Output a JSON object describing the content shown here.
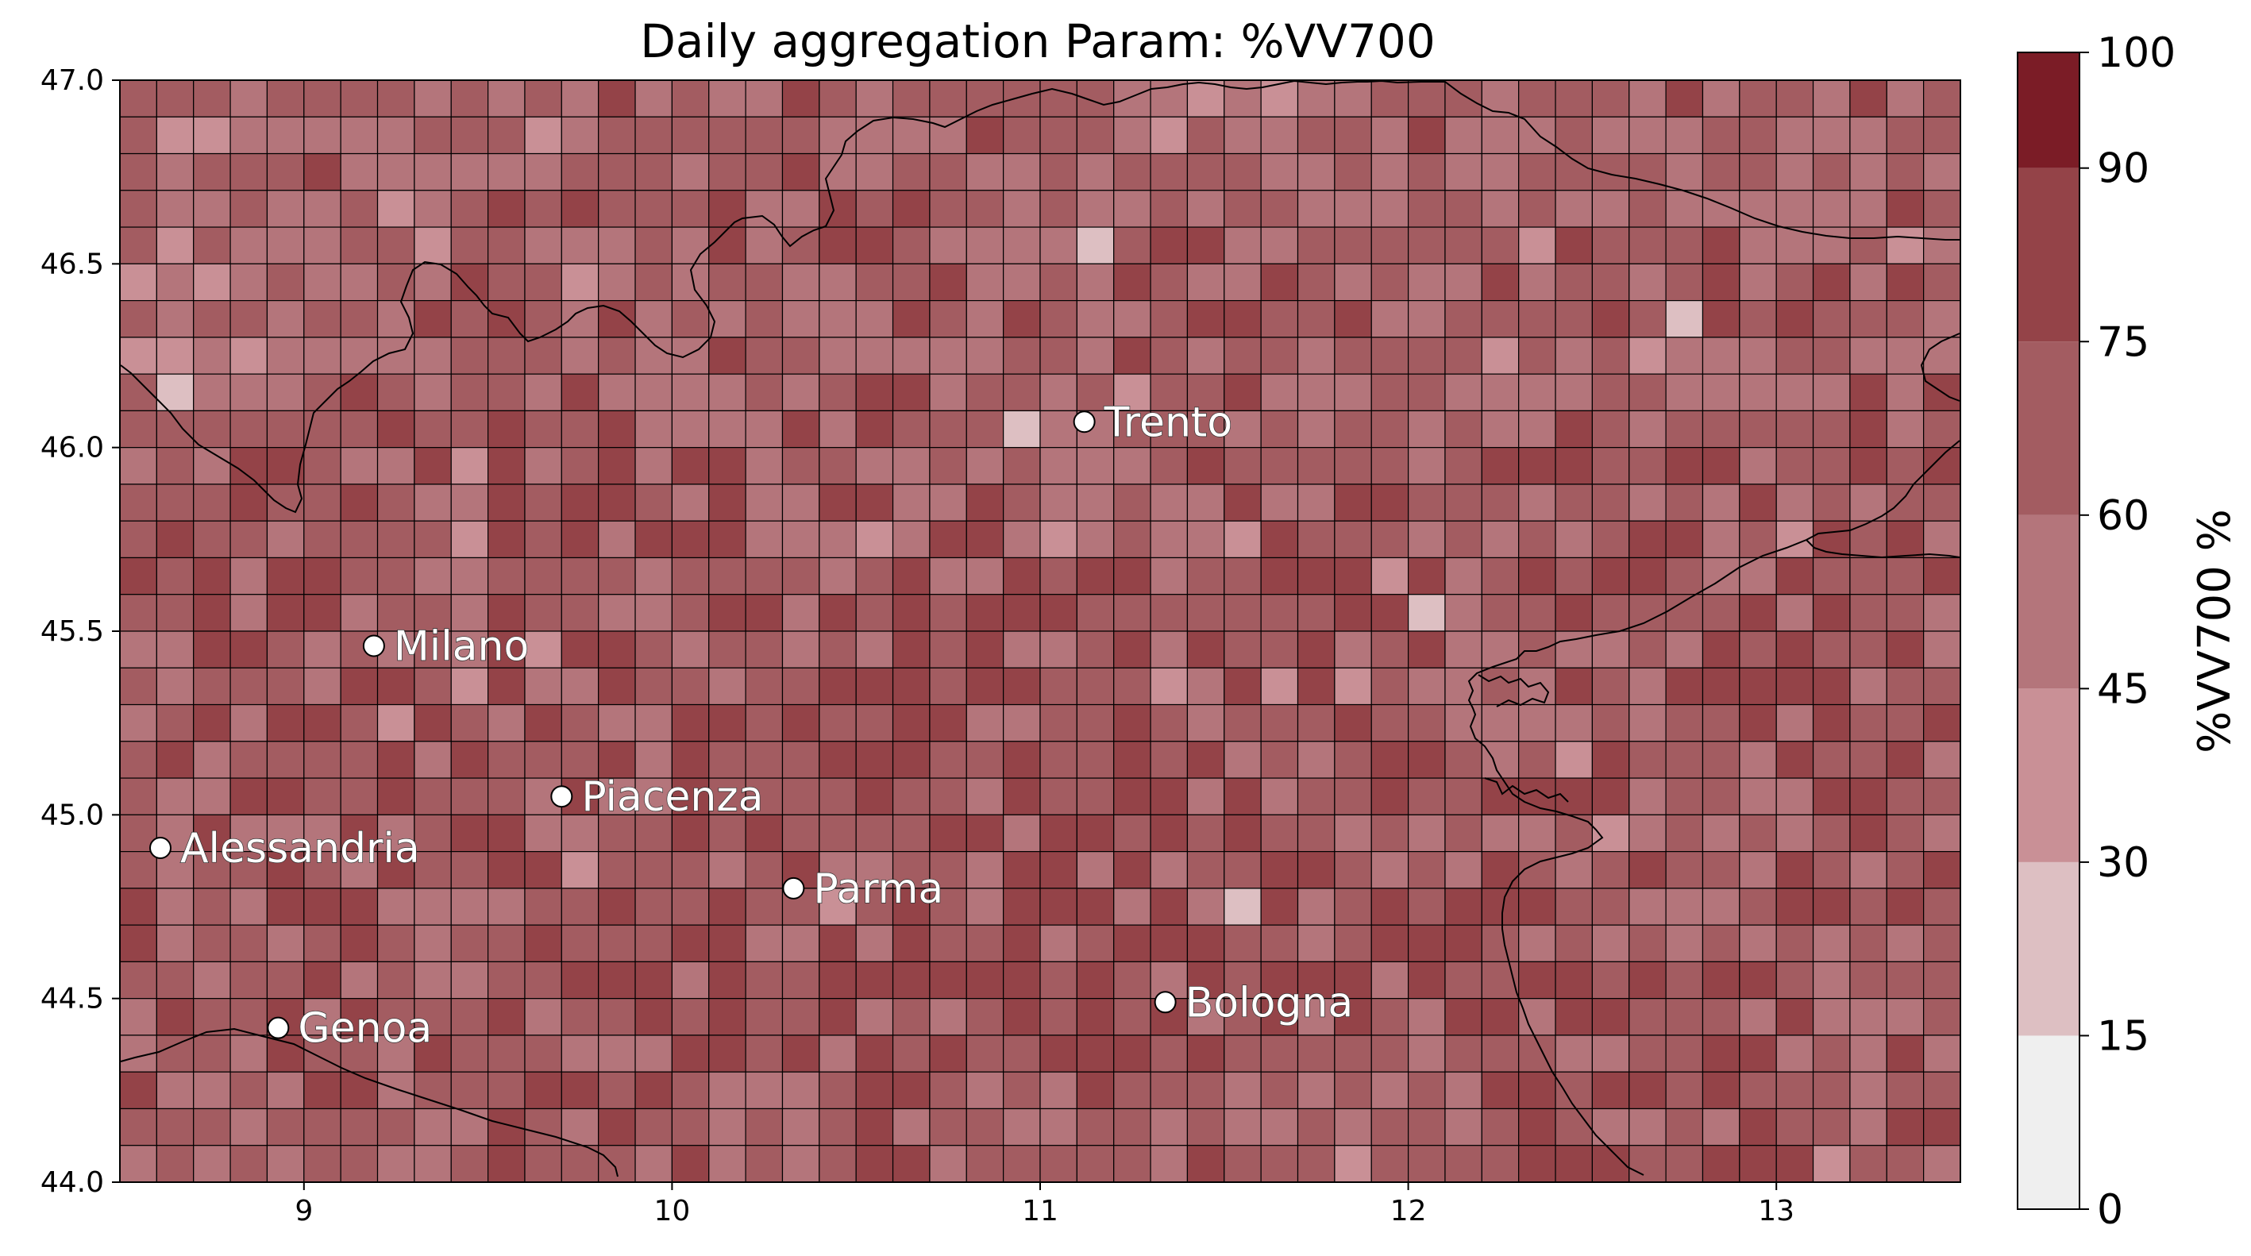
{
  "title": "Daily aggregation Param: %VV700",
  "map": {
    "lon_range": [
      8.5,
      13.5
    ],
    "lat_range": [
      44.0,
      47.0
    ],
    "cell_size_deg": 0.1,
    "x_ticks": [
      "9",
      "10",
      "11",
      "12",
      "13"
    ],
    "y_ticks": [
      "44.0",
      "44.5",
      "45.0",
      "45.5",
      "46.0",
      "46.5",
      "47.0"
    ],
    "gridlines": true,
    "cities": [
      {
        "name": "Trento",
        "lon": 11.12,
        "lat": 46.07
      },
      {
        "name": "Milano",
        "lon": 9.19,
        "lat": 45.46
      },
      {
        "name": "Piacenza",
        "lon": 9.7,
        "lat": 45.05
      },
      {
        "name": "Alessandria",
        "lon": 8.61,
        "lat": 44.91
      },
      {
        "name": "Parma",
        "lon": 10.33,
        "lat": 44.8
      },
      {
        "name": "Bologna",
        "lon": 11.34,
        "lat": 44.49
      },
      {
        "name": "Genoa",
        "lon": 8.93,
        "lat": 44.42
      }
    ]
  },
  "colorbar": {
    "label": "%VV700 %",
    "ticks": [
      "0",
      "15",
      "30",
      "45",
      "60",
      "75",
      "90",
      "100"
    ],
    "bounds": [
      0,
      15,
      30,
      45,
      60,
      75,
      90,
      100
    ],
    "colors": [
      "#efefef",
      "#ddbfc2",
      "#c99096",
      "#b4757b",
      "#a35c61",
      "#944348",
      "#7b1c26",
      "#6a0000"
    ]
  }
}
